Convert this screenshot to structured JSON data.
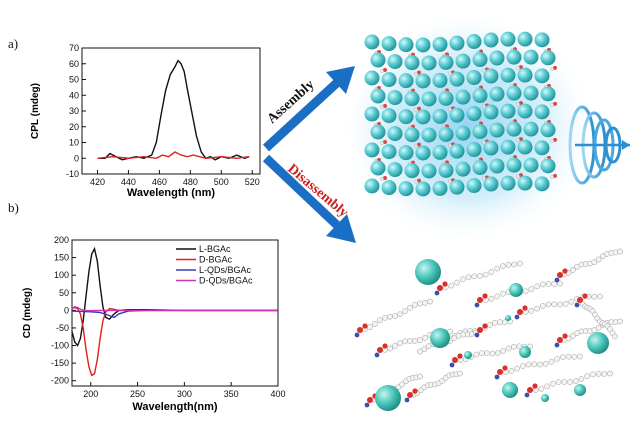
{
  "panels": {
    "a": "a)",
    "b": "b)"
  },
  "arrows": {
    "up_label": "Assembly",
    "down_label": "Disassembly",
    "up_color": "#1a6fc4",
    "down_label_color": "#cc1f1f"
  },
  "chart_data": [
    {
      "type": "line",
      "xlabel": "Wavelength (nm)",
      "ylabel": "CPL (mdeg)",
      "xlim": [
        410,
        525
      ],
      "ylim": [
        -10,
        70
      ],
      "xticks": [
        420,
        440,
        460,
        480,
        500,
        520
      ],
      "yticks": [
        -10,
        0,
        10,
        20,
        30,
        40,
        50,
        60,
        70
      ],
      "series": [
        {
          "color": "#111111",
          "x": [
            420,
            425,
            428,
            432,
            436,
            440,
            445,
            450,
            455,
            458,
            461,
            464,
            467,
            470,
            472,
            474,
            476,
            478,
            481,
            484,
            487,
            490,
            493,
            496,
            500,
            505,
            510,
            515,
            518
          ],
          "y": [
            0,
            0,
            3,
            1,
            -1,
            0,
            1,
            0,
            2,
            10,
            27,
            43,
            53,
            58,
            62,
            60,
            55,
            44,
            29,
            14,
            4,
            0,
            1,
            -1,
            1,
            0,
            2,
            0,
            1
          ]
        },
        {
          "color": "#e02020",
          "x": [
            420,
            430,
            440,
            450,
            458,
            462,
            466,
            470,
            474,
            478,
            482,
            490,
            500,
            510,
            518
          ],
          "y": [
            0,
            1,
            0,
            1,
            0,
            2,
            1,
            4,
            2,
            1,
            2,
            0,
            1,
            0,
            1
          ]
        }
      ]
    },
    {
      "type": "line",
      "xlabel": "Wavelength(nm)",
      "ylabel": "CD (mdeg)",
      "xlim": [
        180,
        400
      ],
      "ylim": [
        -215,
        200
      ],
      "xticks": [
        200,
        250,
        300,
        350,
        400
      ],
      "yticks": [
        -200,
        -150,
        -100,
        -50,
        0,
        50,
        100,
        150,
        200
      ],
      "legend_position": "top-right",
      "series": [
        {
          "name": "L-BGAc",
          "color": "#111111",
          "x": [
            180,
            183,
            186,
            189,
            192,
            195,
            198,
            201,
            204,
            207,
            210,
            213,
            216,
            220,
            225,
            230,
            240,
            260,
            300,
            350,
            400
          ],
          "y": [
            -60,
            -90,
            -100,
            -80,
            -30,
            40,
            110,
            160,
            175,
            140,
            70,
            10,
            -20,
            -25,
            -10,
            0,
            2,
            2,
            0,
            0,
            0
          ]
        },
        {
          "name": "D-BGAc",
          "color": "#e02020",
          "x": [
            180,
            183,
            186,
            189,
            192,
            195,
            198,
            201,
            204,
            207,
            210,
            213,
            216,
            220,
            225,
            230,
            240,
            260,
            300,
            350,
            400
          ],
          "y": [
            5,
            8,
            5,
            -10,
            -50,
            -110,
            -160,
            -185,
            -180,
            -140,
            -80,
            -30,
            -5,
            5,
            3,
            0,
            0,
            0,
            0,
            0,
            0
          ]
        },
        {
          "name": "L-QDs/BGAc",
          "color": "#3a3ab8",
          "x": [
            180,
            190,
            200,
            210,
            220,
            225,
            230,
            240,
            260,
            300,
            350,
            400
          ],
          "y": [
            -2,
            -3,
            -4,
            -6,
            -15,
            -20,
            -10,
            -2,
            0,
            0,
            0,
            0
          ]
        },
        {
          "name": "D-QDs/BGAc",
          "color": "#d22fb5",
          "x": [
            180,
            183,
            186,
            190,
            195,
            200,
            210,
            220,
            230,
            240,
            260,
            300,
            350,
            400
          ],
          "y": [
            5,
            10,
            8,
            2,
            0,
            -1,
            0,
            0,
            0,
            0,
            0,
            0,
            0,
            0
          ]
        }
      ]
    }
  ]
}
